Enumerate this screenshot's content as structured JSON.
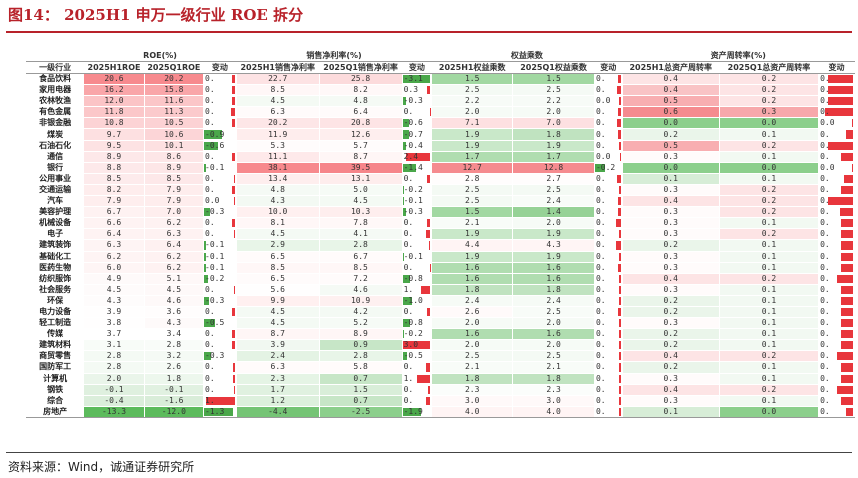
{
  "title": "图14：   2025H1 申万一级行业 ROE 拆分",
  "source": "资料来源：Wind，诚通证券研究所",
  "group_headers": [
    "ROE(%)",
    "销售净利率(%)",
    "权益乘数",
    "资产周转率(%)"
  ],
  "sub_headers": [
    "一级行业",
    "2025H1ROE",
    "2025Q1ROE",
    "变动",
    "2025H1销售净利率",
    "2025Q1销售净利率",
    "变动",
    "2025H1权益乘数",
    "2025Q1权益乘数",
    "变动",
    "2025H1总资产周转率",
    "2025Q1总资产周转率",
    "变动"
  ],
  "rows": [
    {
      "ind": "食品饮料",
      "roe1": "20.6",
      "roe2": "20.2",
      "roec": "0.",
      "npm1": "22.7",
      "npm2": "25.8",
      "npmc": "-3.1",
      "em1": "1.5",
      "em2": "1.5",
      "emc": "0.",
      "at1": "0.4",
      "at2": "0.2",
      "atc": "0."
    },
    {
      "ind": "家用电器",
      "roe1": "16.2",
      "roe2": "15.8",
      "roec": "0.",
      "npm1": "8.5",
      "npm2": "8.2",
      "npmc": "0.3",
      "em1": "2.5",
      "em2": "2.5",
      "emc": "0.",
      "at1": "0.4",
      "at2": "0.2",
      "atc": "0."
    },
    {
      "ind": "农林牧渔",
      "roe1": "12.0",
      "roe2": "11.6",
      "roec": "0.",
      "npm1": "4.5",
      "npm2": "4.8",
      "npmc": "-0.3",
      "em1": "2.2",
      "em2": "2.2",
      "emc": "0.0",
      "at1": "0.5",
      "at2": "0.2",
      "atc": "0."
    },
    {
      "ind": "有色金属",
      "roe1": "11.8",
      "roe2": "11.3",
      "roec": "0.",
      "npm1": "6.3",
      "npm2": "6.4",
      "npmc": "0.",
      "em1": "2.0",
      "em2": "2.0",
      "emc": "0.",
      "at1": "0.6",
      "at2": "0.3",
      "atc": "0."
    },
    {
      "ind": "非银金融",
      "roe1": "10.8",
      "roe2": "10.5",
      "roec": "0.",
      "npm1": "20.2",
      "npm2": "20.8",
      "npmc": "-0.6",
      "em1": "7.1",
      "em2": "7.0",
      "emc": "0.",
      "at1": "0.0",
      "at2": "0.0",
      "atc": "0.0"
    },
    {
      "ind": "煤炭",
      "roe1": "9.7",
      "roe2": "10.6",
      "roec": "-0.9",
      "npm1": "11.9",
      "npm2": "12.6",
      "npmc": "-0.7",
      "em1": "1.9",
      "em2": "1.8",
      "emc": "0.",
      "at1": "0.2",
      "at2": "0.1",
      "atc": "0."
    },
    {
      "ind": "石油石化",
      "roe1": "9.5",
      "roe2": "10.1",
      "roec": "-0.6",
      "npm1": "5.3",
      "npm2": "5.7",
      "npmc": "-0.4",
      "em1": "1.9",
      "em2": "1.9",
      "emc": "0.",
      "at1": "0.5",
      "at2": "0.2",
      "atc": "0."
    },
    {
      "ind": "通信",
      "roe1": "8.9",
      "roe2": "8.6",
      "roec": "0.",
      "npm1": "11.1",
      "npm2": "8.7",
      "npmc": "2.4",
      "em1": "1.7",
      "em2": "1.7",
      "emc": "0.0",
      "at1": "0.3",
      "at2": "0.1",
      "atc": "0."
    },
    {
      "ind": "银行",
      "roe1": "8.8",
      "roe2": "8.9",
      "roec": "-0.1",
      "npm1": "38.1",
      "npm2": "39.5",
      "npmc": "-1.4",
      "em1": "12.7",
      "em2": "12.8",
      "emc": "-0.2",
      "at1": "0.0",
      "at2": "0.0",
      "atc": "0.0"
    },
    {
      "ind": "公用事业",
      "roe1": "8.5",
      "roe2": "8.5",
      "roec": "0.",
      "npm1": "13.4",
      "npm2": "13.1",
      "npmc": "0.",
      "em1": "2.8",
      "em2": "2.7",
      "emc": "0.",
      "at1": "0.1",
      "at2": "0.1",
      "atc": "0."
    },
    {
      "ind": "交通运输",
      "roe1": "8.2",
      "roe2": "7.9",
      "roec": "0.",
      "npm1": "4.8",
      "npm2": "5.0",
      "npmc": "-0.2",
      "em1": "2.5",
      "em2": "2.5",
      "emc": "0.",
      "at1": "0.3",
      "at2": "0.2",
      "atc": "0."
    },
    {
      "ind": "汽车",
      "roe1": "7.9",
      "roe2": "7.9",
      "roec": "0.0",
      "npm1": "4.3",
      "npm2": "4.5",
      "npmc": "-0.1",
      "em1": "2.5",
      "em2": "2.4",
      "emc": "0.",
      "at1": "0.4",
      "at2": "0.2",
      "atc": "0."
    },
    {
      "ind": "美容护理",
      "roe1": "6.7",
      "roe2": "7.0",
      "roec": "-0.3",
      "npm1": "10.0",
      "npm2": "10.3",
      "npmc": "-0.3",
      "em1": "1.5",
      "em2": "1.4",
      "emc": "0.",
      "at1": "0.3",
      "at2": "0.2",
      "atc": "0."
    },
    {
      "ind": "机械设备",
      "roe1": "6.6",
      "roe2": "6.2",
      "roec": "0.",
      "npm1": "8.1",
      "npm2": "7.8",
      "npmc": "0.",
      "em1": "2.1",
      "em2": "2.0",
      "emc": "0.",
      "at1": "0.3",
      "at2": "0.1",
      "atc": "0."
    },
    {
      "ind": "电子",
      "roe1": "6.4",
      "roe2": "6.3",
      "roec": "0.",
      "npm1": "4.5",
      "npm2": "4.1",
      "npmc": "0.",
      "em1": "1.9",
      "em2": "1.9",
      "emc": "0.",
      "at1": "0.3",
      "at2": "0.2",
      "atc": "0."
    },
    {
      "ind": "建筑装饰",
      "roe1": "6.3",
      "roe2": "6.4",
      "roec": "-0.1",
      "npm1": "2.9",
      "npm2": "2.8",
      "npmc": "0.",
      "em1": "4.4",
      "em2": "4.3",
      "emc": "0.",
      "at1": "0.2",
      "at2": "0.1",
      "atc": "0."
    },
    {
      "ind": "基础化工",
      "roe1": "6.2",
      "roe2": "6.2",
      "roec": "-0.1",
      "npm1": "6.5",
      "npm2": "6.7",
      "npmc": "-0.1",
      "em1": "1.9",
      "em2": "1.9",
      "emc": "0.",
      "at1": "0.3",
      "at2": "0.1",
      "atc": "0."
    },
    {
      "ind": "医药生物",
      "roe1": "6.0",
      "roe2": "6.2",
      "roec": "-0.1",
      "npm1": "8.5",
      "npm2": "8.5",
      "npmc": "0.",
      "em1": "1.6",
      "em2": "1.6",
      "emc": "0.",
      "at1": "0.3",
      "at2": "0.1",
      "atc": "0."
    },
    {
      "ind": "纺织服饰",
      "roe1": "4.9",
      "roe2": "5.1",
      "roec": "-0.2",
      "npm1": "6.5",
      "npm2": "7.2",
      "npmc": "-0.8",
      "em1": "1.6",
      "em2": "1.6",
      "emc": "0.",
      "at1": "0.4",
      "at2": "0.2",
      "atc": "0."
    },
    {
      "ind": "社会服务",
      "roe1": "4.5",
      "roe2": "4.5",
      "roec": "0.",
      "npm1": "5.6",
      "npm2": "4.6",
      "npmc": "1.",
      "em1": "1.8",
      "em2": "1.8",
      "emc": "0.",
      "at1": "0.3",
      "at2": "0.1",
      "atc": "0."
    },
    {
      "ind": "环保",
      "roe1": "4.3",
      "roe2": "4.6",
      "roec": "-0.3",
      "npm1": "9.9",
      "npm2": "10.9",
      "npmc": "-1.0",
      "em1": "2.4",
      "em2": "2.4",
      "emc": "0.",
      "at1": "0.2",
      "at2": "0.1",
      "atc": "0."
    },
    {
      "ind": "电力设备",
      "roe1": "3.9",
      "roe2": "3.6",
      "roec": "0.",
      "npm1": "4.5",
      "npm2": "4.2",
      "npmc": "0.",
      "em1": "2.6",
      "em2": "2.5",
      "emc": "0.",
      "at1": "0.2",
      "at2": "0.1",
      "atc": "0."
    },
    {
      "ind": "轻工制造",
      "roe1": "3.8",
      "roe2": "4.3",
      "roec": "-0.5",
      "npm1": "4.5",
      "npm2": "5.2",
      "npmc": "-0.8",
      "em1": "2.0",
      "em2": "2.0",
      "emc": "0.",
      "at1": "0.3",
      "at2": "0.1",
      "atc": "0."
    },
    {
      "ind": "传媒",
      "roe1": "3.7",
      "roe2": "3.4",
      "roec": "0.",
      "npm1": "8.7",
      "npm2": "8.9",
      "npmc": "-0.2",
      "em1": "1.6",
      "em2": "1.6",
      "emc": "0.",
      "at1": "0.2",
      "at2": "0.1",
      "atc": "0."
    },
    {
      "ind": "建筑材料",
      "roe1": "3.1",
      "roe2": "2.8",
      "roec": "0.",
      "npm1": "3.9",
      "npm2": "0.9",
      "npmc": "3.0",
      "em1": "2.0",
      "em2": "2.0",
      "emc": "0.",
      "at1": "0.2",
      "at2": "0.1",
      "atc": "0."
    },
    {
      "ind": "商贸零售",
      "roe1": "2.8",
      "roe2": "3.2",
      "roec": "-0.3",
      "npm1": "2.4",
      "npm2": "2.8",
      "npmc": "-0.5",
      "em1": "2.5",
      "em2": "2.5",
      "emc": "0.",
      "at1": "0.4",
      "at2": "0.2",
      "atc": "0."
    },
    {
      "ind": "国防军工",
      "roe1": "2.8",
      "roe2": "2.6",
      "roec": "0.",
      "npm1": "6.3",
      "npm2": "5.8",
      "npmc": "0.",
      "em1": "2.1",
      "em2": "2.1",
      "emc": "0.",
      "at1": "0.2",
      "at2": "0.1",
      "atc": "0."
    },
    {
      "ind": "计算机",
      "roe1": "2.0",
      "roe2": "1.8",
      "roec": "0.",
      "npm1": "2.3",
      "npm2": "0.7",
      "npmc": "1.",
      "em1": "1.8",
      "em2": "1.8",
      "emc": "0.",
      "at1": "0.3",
      "at2": "0.1",
      "atc": "0."
    },
    {
      "ind": "钢铁",
      "roe1": "-0.1",
      "roe2": "-0.1",
      "roec": "0.",
      "npm1": "1.7",
      "npm2": "1.5",
      "npmc": "0.",
      "em1": "2.3",
      "em2": "2.3",
      "emc": "0.",
      "at1": "0.4",
      "at2": "0.2",
      "atc": "0."
    },
    {
      "ind": "综合",
      "roe1": "-0.4",
      "roe2": "-1.6",
      "roec": "1.",
      "npm1": "1.2",
      "npm2": "0.7",
      "npmc": "0.",
      "em1": "3.0",
      "em2": "3.0",
      "emc": "0.",
      "at1": "0.3",
      "at2": "0.1",
      "atc": "0."
    },
    {
      "ind": "房地产",
      "roe1": "-13.3",
      "roe2": "-12.0",
      "roec": "-1.3",
      "npm1": "-4.4",
      "npm2": "-2.5",
      "npmc": "-1.9",
      "em1": "4.0",
      "em2": "4.0",
      "emc": "0.",
      "at1": "0.1",
      "at2": "0.0",
      "atc": "0."
    }
  ],
  "cell_fills": {
    "roe1": [
      "#f78a8e",
      "#f9a6a9",
      "#fbc4c6",
      "#fbc7c9",
      "#fcd3d5",
      "#fde0e1",
      "#fde2e3",
      "#fde8e9",
      "#fde9ea",
      "#fdebec",
      "#feeded",
      "#feeeee",
      "#fef2f2",
      "#fef3f3",
      "#fef3f3",
      "#fef4f4",
      "#fef4f4",
      "#fef5f5",
      "#fefafa",
      "#fefbfb",
      "#fefcfc",
      "#fffefe",
      "#fffefe",
      "#ffffff",
      "#f8fcf8",
      "#f4faf4",
      "#f4faf4",
      "#eaf5ea",
      "#dff0df",
      "#dbeedb",
      "#5cbb5c"
    ],
    "roe2": [
      "#f78a8e",
      "#f9a6a9",
      "#fbc6c8",
      "#fbcacc",
      "#fcd2d4",
      "#fcd5d7",
      "#fde0e1",
      "#fde6e7",
      "#fde6e7",
      "#fde8e9",
      "#feeded",
      "#feeded",
      "#feeeee",
      "#fef2f2",
      "#fef2f2",
      "#fef1f1",
      "#fef2f2",
      "#fef2f2",
      "#fef8f8",
      "#fef9f9",
      "#fef9f9",
      "#fffdfd",
      "#fefafa",
      "#ffffff",
      "#f9fcf9",
      "#f5faf5",
      "#f6fbf6",
      "#edf7ed",
      "#e1f1e1",
      "#d9edd9",
      "#5cbb5c"
    ],
    "npm1": [
      "#fde3e4",
      "#fff7f7",
      "#f4faf4",
      "#fffbfb",
      "#fde6e7",
      "#feeded",
      "#fffcfc",
      "#fee9ea",
      "#f7898d",
      "#feeeee",
      "#f5faf5",
      "#f3f9f3",
      "#fff0f0",
      "#fff7f7",
      "#f4faf4",
      "#e8f5e8",
      "#fffbfb",
      "#fff7f7",
      "#fffbfb",
      "#fffefe",
      "#fff0f0",
      "#f4faf4",
      "#f4faf4",
      "#fff6f6",
      "#f1f8f1",
      "#e4f3e4",
      "#fffbfb",
      "#e5f4e5",
      "#e0f1e0",
      "#ddf0dd",
      "#75c475"
    ],
    "npm2": [
      "#fcdbdc",
      "#fff8f8",
      "#f5faf5",
      "#fffbfb",
      "#fde4e5",
      "#feeeee",
      "#fffcfc",
      "#fff6f6",
      "#f6858a",
      "#feeded",
      "#f6fbf6",
      "#f4faf4",
      "#feeeee",
      "#fff8f8",
      "#f5faf5",
      "#e8f5e8",
      "#fffbfb",
      "#fff7f7",
      "#fffbfb",
      "#f5faf5",
      "#fef0f0",
      "#f4faf4",
      "#f6fbf6",
      "#fff6f6",
      "#c7e6c7",
      "#e8f5e8",
      "#fffbfb",
      "#c7e6c7",
      "#d9eed9",
      "#c7e6c7",
      "#8ccf8c"
    ],
    "em1": [
      "#a2d8a2",
      "#f4faf4",
      "#f7fbf7",
      "#f6fbf6",
      "#fde0e1",
      "#c9e8c9",
      "#c9e8c9",
      "#b0ddb0",
      "#f58b8f",
      "#fffdfd",
      "#f4faf4",
      "#f4faf4",
      "#a2d8a2",
      "#f8fcf8",
      "#c9e8c9",
      "#fff4f4",
      "#c9e8c9",
      "#b0ddb0",
      "#b0ddb0",
      "#c0e3c0",
      "#f6fbf6",
      "#fffafa",
      "#f6fbf6",
      "#b0ddb0",
      "#f6fbf6",
      "#f4faf4",
      "#f8fcf8",
      "#c0e3c0",
      "#fbfdfb",
      "#fff9f9",
      "#fff4f4"
    ],
    "em2": [
      "#a2d8a2",
      "#f5faf5",
      "#f7fbf7",
      "#f6fbf6",
      "#fde0e1",
      "#c0e3c0",
      "#c9e8c9",
      "#b0ddb0",
      "#f58b8f",
      "#fffdfd",
      "#f4faf4",
      "#f8fcf8",
      "#96d296",
      "#f6fbf6",
      "#c9e8c9",
      "#fff5f5",
      "#c9e8c9",
      "#b0ddb0",
      "#b0ddb0",
      "#c0e3c0",
      "#f6fbf6",
      "#f8fcf8",
      "#f6fbf6",
      "#b0ddb0",
      "#f6fbf6",
      "#f4faf4",
      "#f8fcf8",
      "#c0e3c0",
      "#fbfdfb",
      "#fff9f9",
      "#fff4f4"
    ],
    "at1": [
      "#fde4e5",
      "#f9c3c5",
      "#f8aeb1",
      "#f58b8f",
      "#8ccf8c",
      "#eaf5ea",
      "#f8aeb1",
      "#fffbfb",
      "#8ccf8c",
      "#d7edd7",
      "#fffbfb",
      "#fde4e5",
      "#fffbfb",
      "#fffbfb",
      "#fffbfb",
      "#eaf5ea",
      "#fffbfb",
      "#fffbfb",
      "#fde4e5",
      "#fffbfb",
      "#eaf5ea",
      "#eaf5ea",
      "#fffbfb",
      "#eaf5ea",
      "#eaf5ea",
      "#fde4e5",
      "#eaf5ea",
      "#fffbfb",
      "#fde4e5",
      "#fffbfb",
      "#d7edd7"
    ],
    "at2": [
      "#fde4e5",
      "#fde4e5",
      "#fde4e5",
      "#f7a8ab",
      "#8ccf8c",
      "#f2f9f2",
      "#fde4e5",
      "#f2f9f2",
      "#8ccf8c",
      "#f2f9f2",
      "#fde4e5",
      "#fde4e5",
      "#fde4e5",
      "#f2f9f2",
      "#fde4e5",
      "#f2f9f2",
      "#f2f9f2",
      "#f2f9f2",
      "#fde4e5",
      "#f2f9f2",
      "#f2f9f2",
      "#f2f9f2",
      "#f2f9f2",
      "#f2f9f2",
      "#f2f9f2",
      "#fde4e5",
      "#f2f9f2",
      "#f2f9f2",
      "#fde4e5",
      "#f2f9f2",
      "#8ccf8c"
    ]
  },
  "bars": {
    "roec": [
      0.1,
      0.1,
      0.1,
      0.12,
      0.08,
      -0.6,
      -0.45,
      0.08,
      -0.05,
      0.02,
      0.08,
      0.01,
      -0.2,
      0.1,
      0.03,
      -0.05,
      -0.05,
      -0.06,
      -0.12,
      0.02,
      -0.18,
      0.08,
      -0.35,
      0.08,
      0.08,
      -0.22,
      0.06,
      0.06,
      0.01,
      0.95,
      -0.95
    ],
    "npmc": [
      -0.9,
      0.12,
      -0.1,
      0.02,
      -0.2,
      -0.22,
      -0.12,
      0.8,
      -0.45,
      0.1,
      -0.06,
      -0.03,
      -0.1,
      0.1,
      0.13,
      0.03,
      -0.03,
      0.01,
      -0.25,
      0.3,
      -0.3,
      0.1,
      -0.25,
      -0.06,
      0.95,
      -0.15,
      0.15,
      0.45,
      0.06,
      0.15,
      -0.6
    ],
    "emc": [
      0.1,
      0.12,
      0.05,
      0.1,
      0.12,
      0.1,
      0.05,
      0.02,
      -0.35,
      0.12,
      0.05,
      0.1,
      0.1,
      0.15,
      0.05,
      0.15,
      0.04,
      0.08,
      0.06,
      0.05,
      0.05,
      0.1,
      0.05,
      0.06,
      0.05,
      0.05,
      0.05,
      0.05,
      0.05,
      0.05,
      0.05
    ],
    "atc": [
      0.85,
      0.85,
      0.85,
      0.95,
      0.02,
      0.25,
      0.85,
      0.4,
      0.02,
      0.3,
      0.4,
      0.85,
      0.45,
      0.4,
      0.4,
      0.4,
      0.4,
      0.4,
      0.55,
      0.4,
      0.4,
      0.4,
      0.4,
      0.4,
      0.4,
      0.55,
      0.4,
      0.4,
      0.55,
      0.4,
      0.25
    ]
  },
  "colors": {
    "pos_bar": "#e8363c",
    "neg_bar": "#4aa74a",
    "title": "#b8222a"
  }
}
